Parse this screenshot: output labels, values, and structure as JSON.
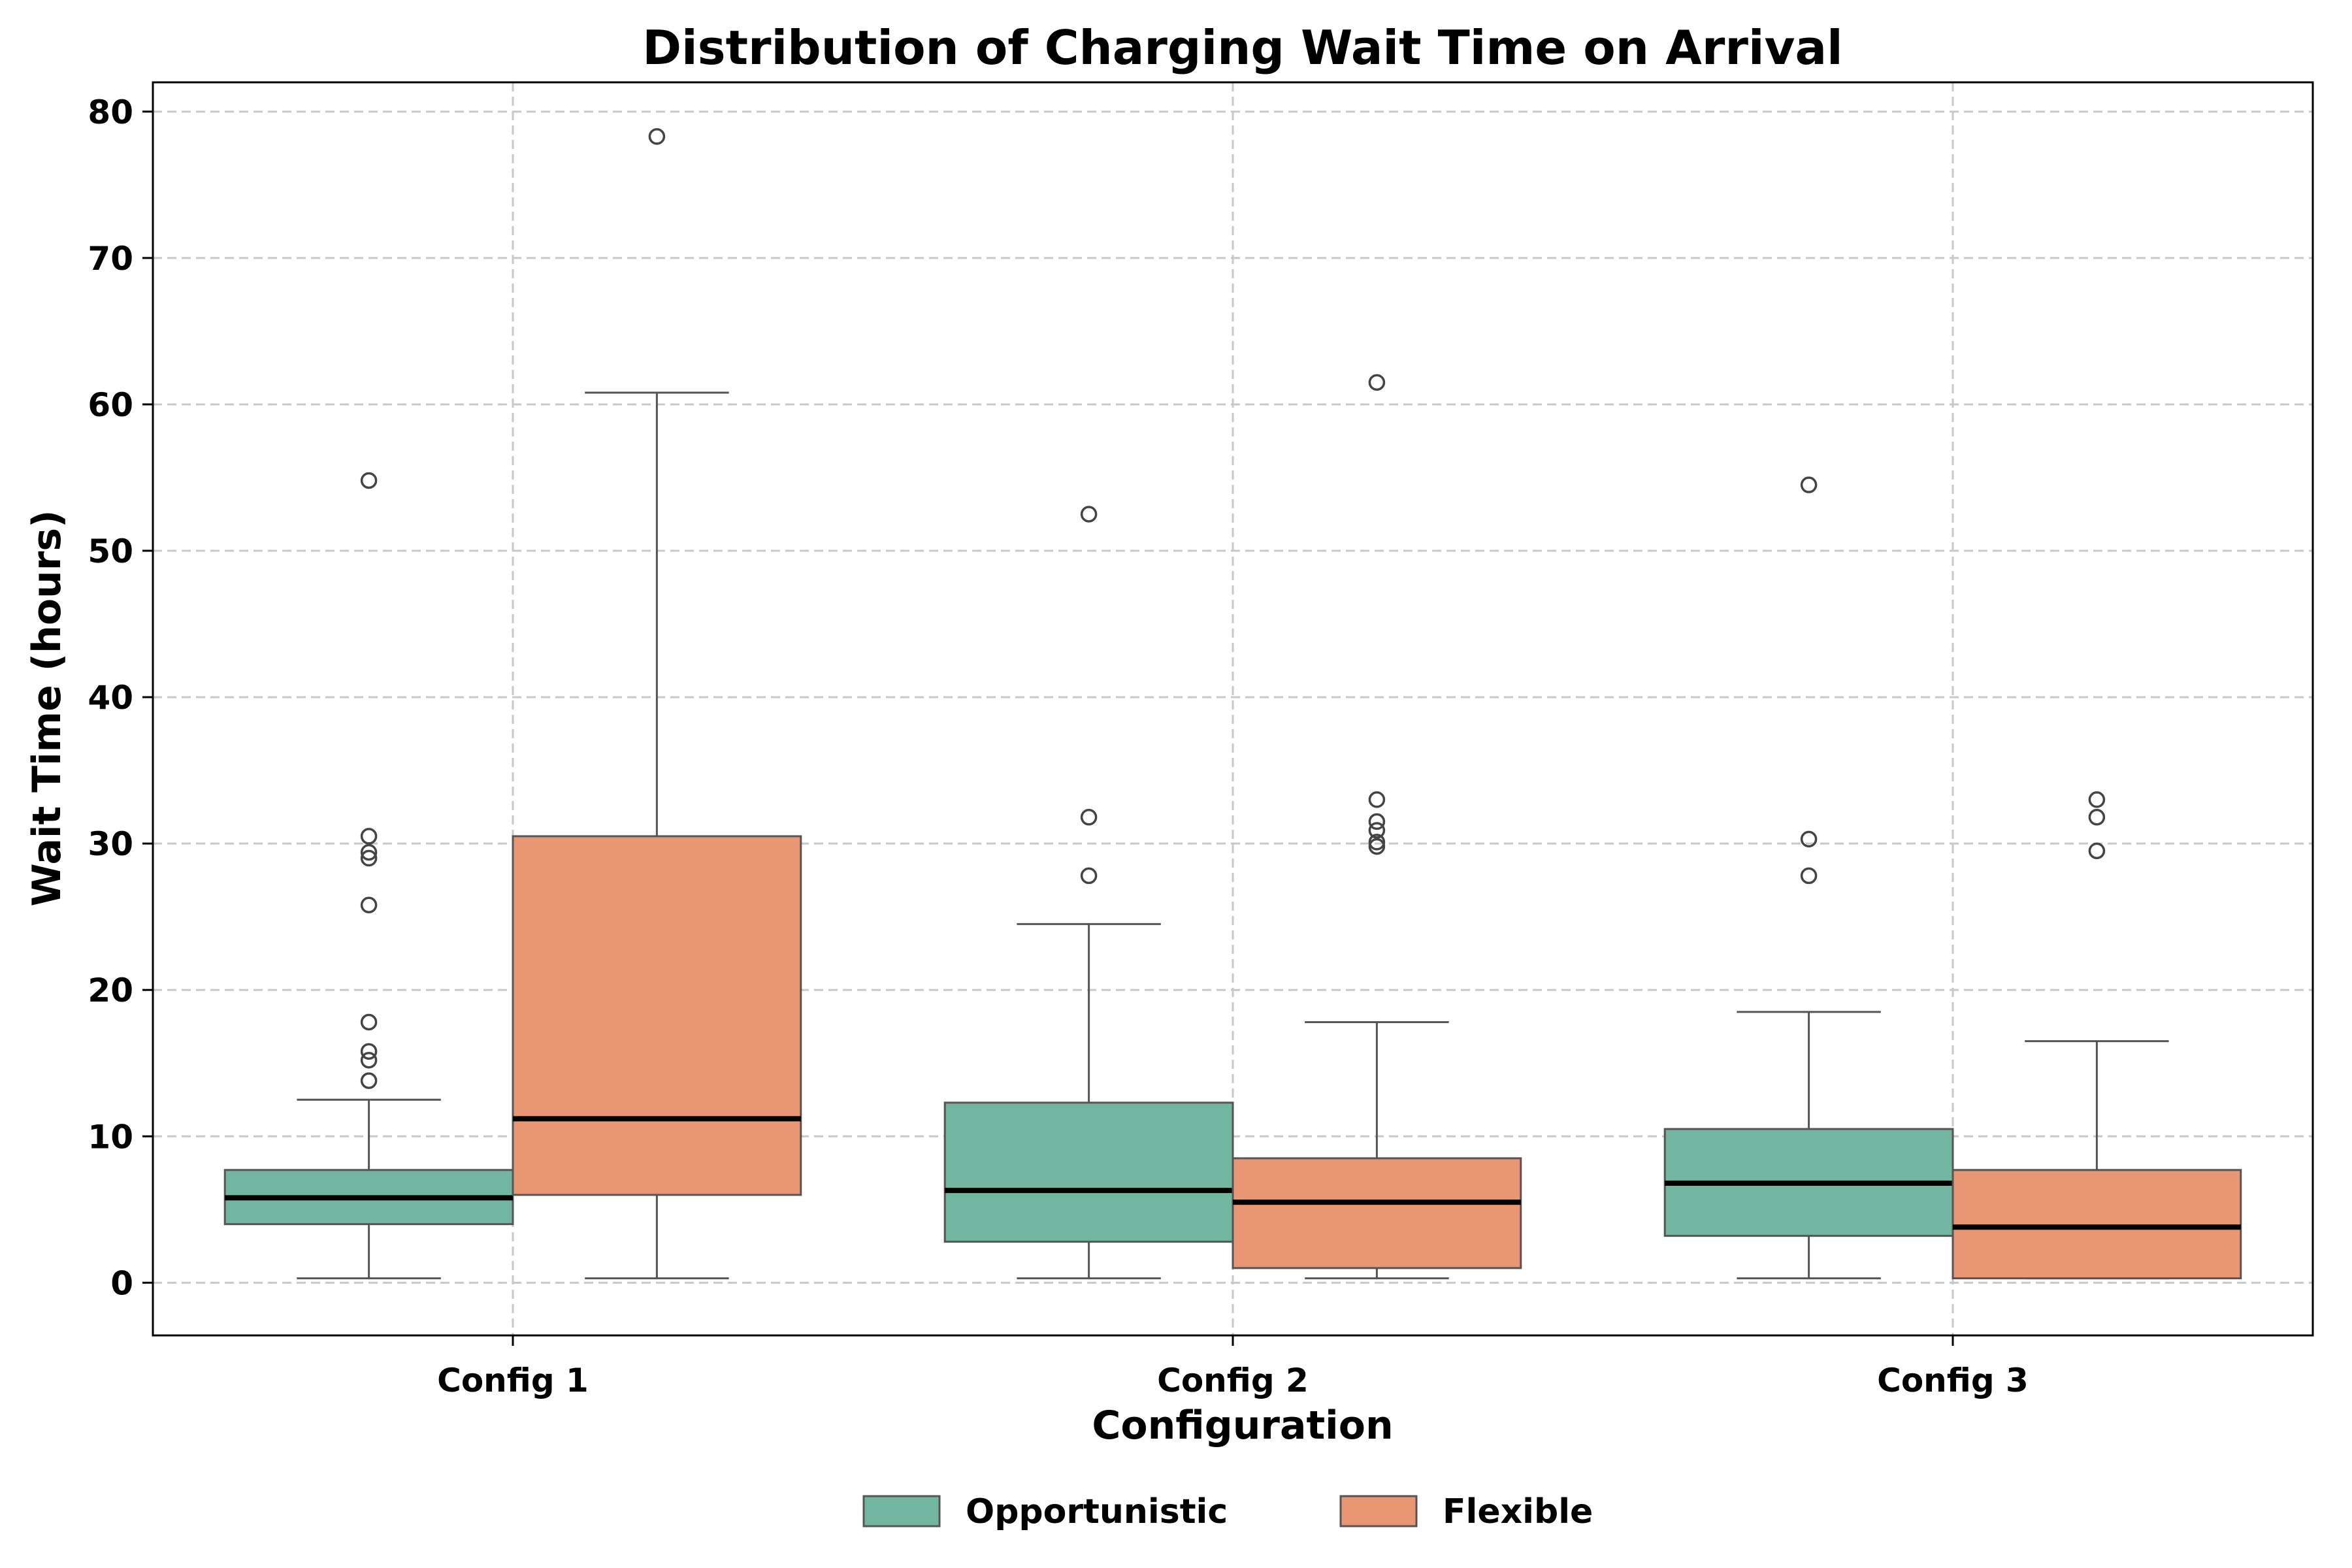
{
  "chart_data": {
    "type": "box",
    "title": "Distribution of Charging Wait Time on Arrival",
    "xlabel": "Configuration",
    "ylabel": "Wait Time (hours)",
    "ylim": [
      -3.6,
      82
    ],
    "yticks": [
      0,
      10,
      20,
      30,
      40,
      50,
      60,
      70,
      80
    ],
    "categories": [
      "Config 1",
      "Config 2",
      "Config 3"
    ],
    "grid": true,
    "legend_position": "bottom-center",
    "series": [
      {
        "name": "Opportunistic",
        "color": "#72b6a1",
        "boxes": [
          {
            "category": "Config 1",
            "whisker_low": 0.3,
            "q1": 4.0,
            "median": 5.8,
            "q3": 7.7,
            "whisker_high": 12.5,
            "outliers": [
              13.8,
              15.2,
              15.8,
              17.8,
              25.8,
              29.0,
              29.4,
              30.5,
              54.8
            ]
          },
          {
            "category": "Config 2",
            "whisker_low": 0.3,
            "q1": 2.8,
            "median": 6.3,
            "q3": 12.3,
            "whisker_high": 24.5,
            "outliers": [
              27.8,
              31.8,
              52.5
            ]
          },
          {
            "category": "Config 3",
            "whisker_low": 0.3,
            "q1": 3.2,
            "median": 6.8,
            "q3": 10.5,
            "whisker_high": 18.5,
            "outliers": [
              27.8,
              30.3,
              54.5
            ]
          }
        ]
      },
      {
        "name": "Flexible",
        "color": "#e99675",
        "boxes": [
          {
            "category": "Config 1",
            "whisker_low": 0.3,
            "q1": 6.0,
            "median": 11.2,
            "q3": 30.5,
            "whisker_high": 60.8,
            "outliers": [
              78.3
            ]
          },
          {
            "category": "Config 2",
            "whisker_low": 0.3,
            "q1": 1.0,
            "median": 5.5,
            "q3": 8.5,
            "whisker_high": 17.8,
            "outliers": [
              29.8,
              30.1,
              30.9,
              31.5,
              33.0,
              61.5
            ]
          },
          {
            "category": "Config 3",
            "whisker_low": 0.3,
            "q1": 0.3,
            "median": 3.8,
            "q3": 7.7,
            "whisker_high": 16.5,
            "outliers": [
              29.5,
              31.8,
              33.0
            ]
          }
        ]
      }
    ]
  }
}
